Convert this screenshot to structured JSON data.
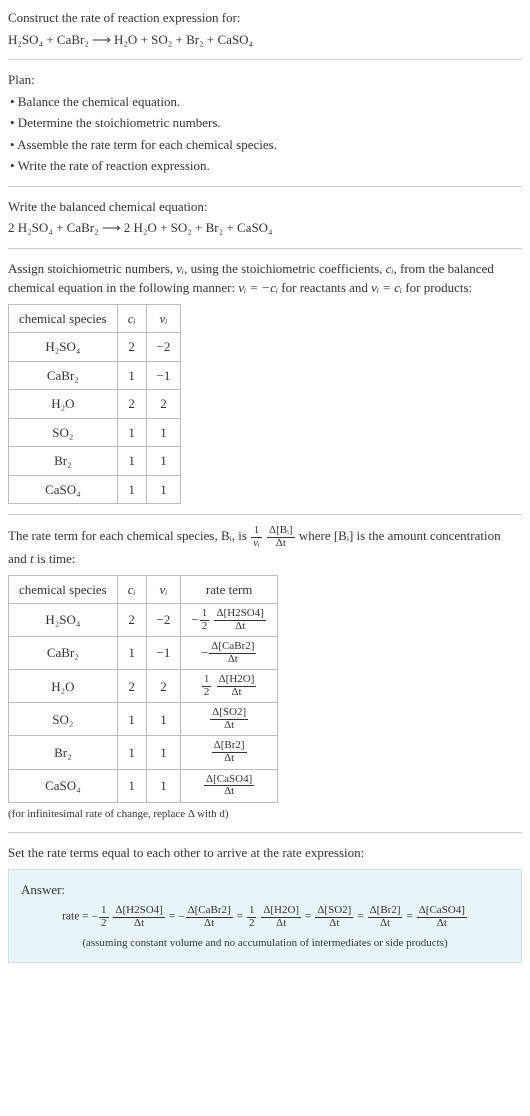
{
  "header": {
    "prompt": "Construct the rate of reaction expression for:",
    "unbalanced_eq": "H₂SO₄ + CaBr₂ ⟶ H₂O + SO₂ + Br₂ + CaSO₄"
  },
  "plan": {
    "title": "Plan:",
    "items": [
      "• Balance the chemical equation.",
      "• Determine the stoichiometric numbers.",
      "• Assemble the rate term for each chemical species.",
      "• Write the rate of reaction expression."
    ]
  },
  "balanced": {
    "title": "Write the balanced chemical equation:",
    "eq": "2 H₂SO₄ + CaBr₂ ⟶ 2 H₂O + SO₂ + Br₂ + CaSO₄"
  },
  "stoich_intro": {
    "lead": "Assign stoichiometric numbers, ",
    "var1": "νᵢ",
    "mid1": ", using the stoichiometric coefficients, ",
    "var2": "cᵢ",
    "mid2": ", from the balanced chemical equation in the following manner: ",
    "rel1": "νᵢ = −cᵢ",
    "mid3": " for reactants and ",
    "rel2": "νᵢ = cᵢ",
    "tail": " for products:"
  },
  "stoich_table": {
    "headers": [
      "chemical species",
      "cᵢ",
      "νᵢ"
    ],
    "rows": [
      [
        "H₂SO₄",
        "2",
        "−2"
      ],
      [
        "CaBr₂",
        "1",
        "−1"
      ],
      [
        "H₂O",
        "2",
        "2"
      ],
      [
        "SO₂",
        "1",
        "1"
      ],
      [
        "Br₂",
        "1",
        "1"
      ],
      [
        "CaSO₄",
        "1",
        "1"
      ]
    ]
  },
  "rate_term_intro": {
    "lead": "The rate term for each chemical species, Bᵢ, is ",
    "frac1_num": "1",
    "frac1_den": "νᵢ",
    "frac2_num": "Δ[Bᵢ]",
    "frac2_den": "Δt",
    "mid": " where [Bᵢ] is the amount concentration and ",
    "tvar": "t",
    "tail": " is time:"
  },
  "rate_table": {
    "headers": [
      "chemical species",
      "cᵢ",
      "νᵢ",
      "rate term"
    ],
    "rows": [
      {
        "sp": "H₂SO₄",
        "c": "2",
        "v": "−2",
        "neg": true,
        "coef_num": "1",
        "coef_den": "2",
        "d_num": "Δ[H2SO4]",
        "d_den": "Δt"
      },
      {
        "sp": "CaBr₂",
        "c": "1",
        "v": "−1",
        "neg": true,
        "coef_num": "",
        "coef_den": "",
        "d_num": "Δ[CaBr2]",
        "d_den": "Δt"
      },
      {
        "sp": "H₂O",
        "c": "2",
        "v": "2",
        "neg": false,
        "coef_num": "1",
        "coef_den": "2",
        "d_num": "Δ[H2O]",
        "d_den": "Δt"
      },
      {
        "sp": "SO₂",
        "c": "1",
        "v": "1",
        "neg": false,
        "coef_num": "",
        "coef_den": "",
        "d_num": "Δ[SO2]",
        "d_den": "Δt"
      },
      {
        "sp": "Br₂",
        "c": "1",
        "v": "1",
        "neg": false,
        "coef_num": "",
        "coef_den": "",
        "d_num": "Δ[Br2]",
        "d_den": "Δt"
      },
      {
        "sp": "CaSO₄",
        "c": "1",
        "v": "1",
        "neg": false,
        "coef_num": "",
        "coef_den": "",
        "d_num": "Δ[CaSO4]",
        "d_den": "Δt"
      }
    ],
    "footnote": "(for infinitesimal rate of change, replace Δ with d)"
  },
  "final": {
    "title": "Set the rate terms equal to each other to arrive at the rate expression:",
    "answer_label": "Answer:",
    "rate_lead": "rate = ",
    "terms": [
      {
        "neg": true,
        "coef_num": "1",
        "coef_den": "2",
        "d_num": "Δ[H2SO4]",
        "d_den": "Δt"
      },
      {
        "neg": true,
        "coef_num": "",
        "coef_den": "",
        "d_num": "Δ[CaBr2]",
        "d_den": "Δt"
      },
      {
        "neg": false,
        "coef_num": "1",
        "coef_den": "2",
        "d_num": "Δ[H2O]",
        "d_den": "Δt"
      },
      {
        "neg": false,
        "coef_num": "",
        "coef_den": "",
        "d_num": "Δ[SO2]",
        "d_den": "Δt"
      },
      {
        "neg": false,
        "coef_num": "",
        "coef_den": "",
        "d_num": "Δ[Br2]",
        "d_den": "Δt"
      },
      {
        "neg": false,
        "coef_num": "",
        "coef_den": "",
        "d_num": "Δ[CaSO4]",
        "d_den": "Δt"
      }
    ],
    "assumption": "(assuming constant volume and no accumulation of intermediates or side products)"
  },
  "colors": {
    "text": "#333333",
    "rule": "#cccccc",
    "border": "#bbbbbb",
    "answer_bg": "#e8f4f8",
    "answer_border": "#cde5ee"
  }
}
